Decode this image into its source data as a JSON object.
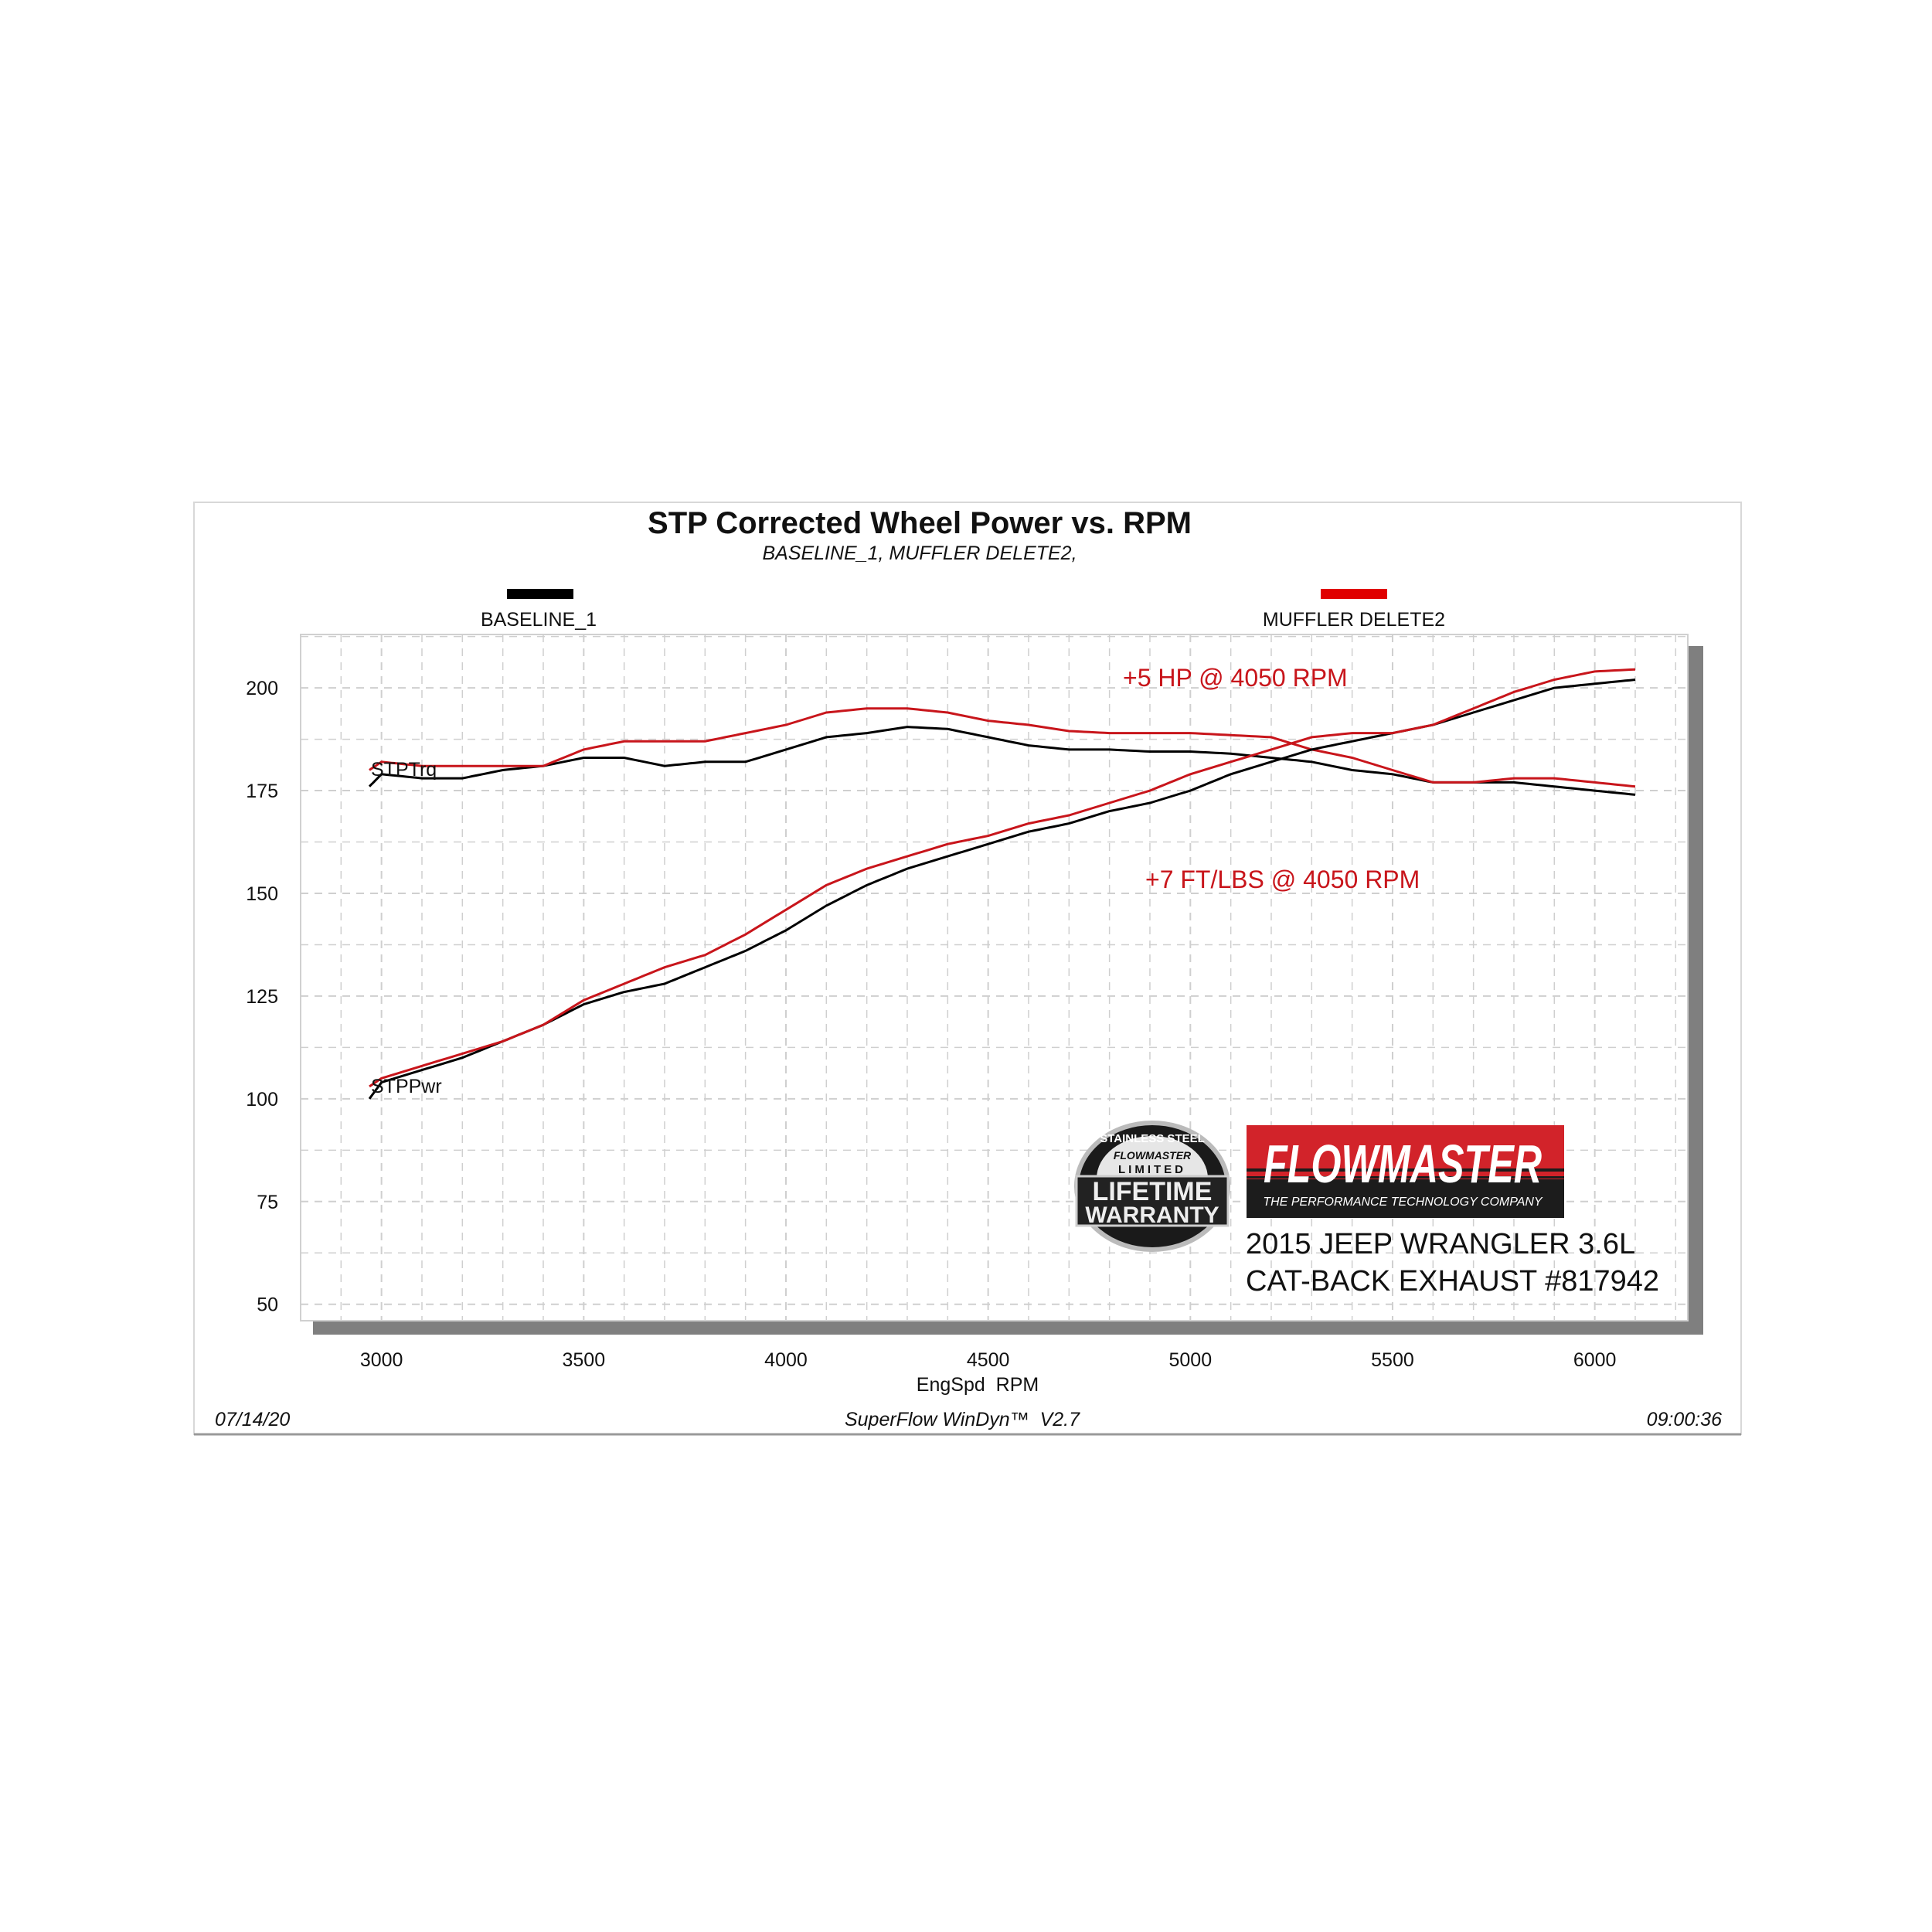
{
  "chart_data": {
    "type": "line",
    "title": "STP Corrected Wheel Power vs. RPM",
    "subtitle": "BASELINE_1, MUFFLER DELETE2,",
    "xlabel": "EngSpd  RPM",
    "ylabel": "",
    "xlim": [
      2800,
      6230
    ],
    "ylim": [
      46,
      213
    ],
    "x_ticks": [
      3000,
      3500,
      4000,
      4500,
      5000,
      5500,
      6000
    ],
    "y_ticks": [
      50,
      75,
      100,
      125,
      150,
      175,
      200
    ],
    "grid": true,
    "legend": [
      {
        "name": "BASELINE_1",
        "color": "#000000",
        "placement": "top-left"
      },
      {
        "name": "MUFFLER DELETE2",
        "color": "#e00000",
        "placement": "top-right"
      }
    ],
    "curve_labels": {
      "torque": "STPTrq",
      "power": "STPPwr"
    },
    "x": [
      2970,
      3000,
      3100,
      3200,
      3300,
      3400,
      3500,
      3600,
      3700,
      3800,
      3900,
      4000,
      4100,
      4200,
      4300,
      4400,
      4500,
      4600,
      4700,
      4800,
      4900,
      5000,
      5100,
      5200,
      5300,
      5400,
      5500,
      5600,
      5700,
      5800,
      5900,
      6000,
      6100
    ],
    "series": [
      {
        "name": "BASELINE_1",
        "quantity": "STPTrq",
        "color": "#000000",
        "values": [
          176,
          179,
          178,
          178,
          180,
          181,
          183,
          183,
          181,
          182,
          182,
          185,
          188,
          189,
          190.5,
          190,
          188,
          186,
          185,
          185,
          184.5,
          184.5,
          184,
          183,
          182,
          180,
          179,
          177,
          177,
          177,
          176,
          175,
          174
        ]
      },
      {
        "name": "MUFFLER DELETE2",
        "quantity": "STPTrq",
        "color": "#c8151b",
        "values": [
          180,
          182,
          181,
          181,
          181,
          181,
          185,
          187,
          187,
          187,
          189,
          191,
          194,
          195,
          195,
          194,
          192,
          191,
          189.5,
          189,
          189,
          189,
          188.5,
          188,
          185,
          183,
          180,
          177,
          177,
          178,
          178,
          177,
          176
        ]
      },
      {
        "name": "BASELINE_1",
        "quantity": "STPPwr",
        "color": "#000000",
        "values": [
          100,
          104,
          107,
          110,
          114,
          118,
          123,
          126,
          128,
          132,
          136,
          141,
          147,
          152,
          156,
          159,
          162,
          165,
          167,
          170,
          172,
          175,
          179,
          182,
          185,
          187,
          189,
          191,
          194,
          197,
          200,
          201,
          202
        ]
      },
      {
        "name": "MUFFLER DELETE2",
        "quantity": "STPPwr",
        "color": "#c8151b",
        "values": [
          103,
          105,
          108,
          111,
          114,
          118,
          124,
          128,
          132,
          135,
          140,
          146,
          152,
          156,
          159,
          162,
          164,
          167,
          169,
          172,
          175,
          179,
          182,
          185,
          188,
          189,
          189,
          191,
          195,
          199,
          202,
          204,
          204.5
        ]
      }
    ],
    "annotations": [
      "+5 HP @ 4050 RPM",
      "+7 FT/LBS @ 4050 RPM"
    ]
  },
  "footer": {
    "date": "07/14/20",
    "software": "SuperFlow WinDyn™  V2.7",
    "time": "09:00:36"
  },
  "vehicle": {
    "line1": "2015 JEEP WRANGLER 3.6L",
    "line2": "CAT-BACK EXHAUST #817942"
  },
  "logos": {
    "warranty": "STAINLESS STEEL FLOWMASTER LIMITED LIFETIME WARRANTY",
    "brand": "FLOWMASTER",
    "brand_tagline": "THE PERFORMANCE TECHNOLOGY COMPANY"
  },
  "colors": {
    "annotation": "#c8151b",
    "grid": "#cfcfcf",
    "shadow": "#7f7f7f",
    "brand_red": "#d2232a"
  }
}
